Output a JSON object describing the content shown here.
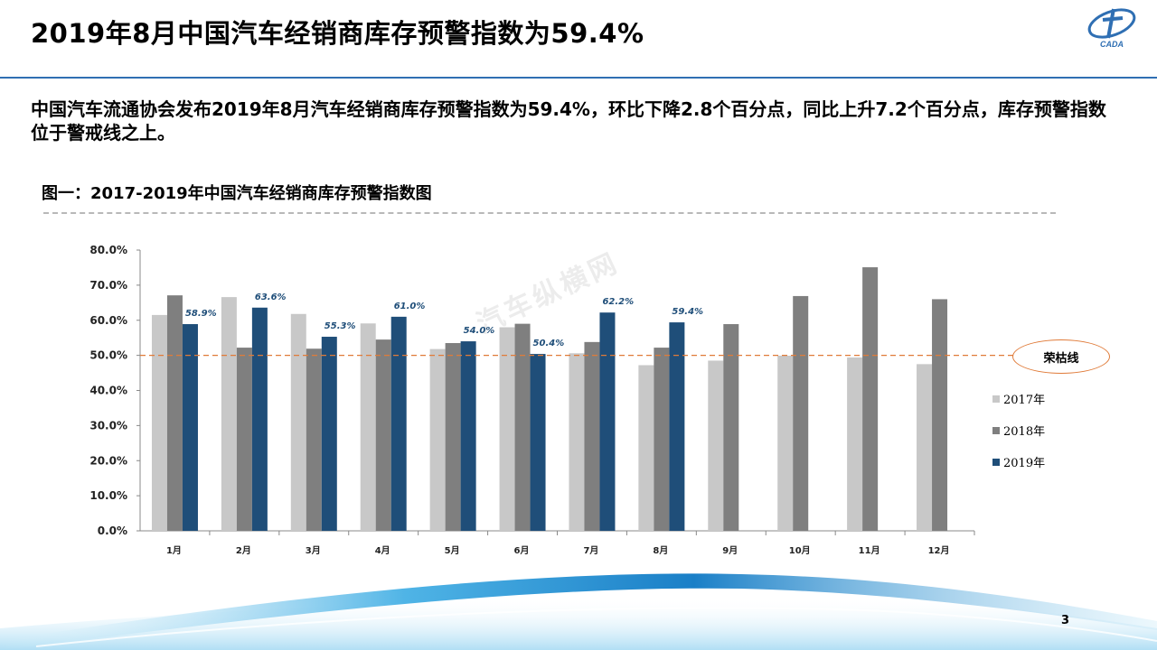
{
  "header": {
    "title": "2019年8月中国汽车经销商库存预警指数为59.4%"
  },
  "intro": {
    "text": "中国汽车流通协会发布2019年8月汽车经销商库存预警指数为59.4%，环比下降2.8个百分点，同比上升7.2个百分点，库存预警指数位于警戒线之上。"
  },
  "figure": {
    "title": "图一：2017-2019年中国汽车经销商库存预警指数图"
  },
  "watermark": {
    "text": "汽车纵横网"
  },
  "reference": {
    "label": "荣枯线",
    "value": 50,
    "color": "#e07b39"
  },
  "page": {
    "number": "3"
  },
  "colors": {
    "s2017": "#c8c8c8",
    "s2018": "#7f7f7f",
    "s2019": "#1f4e79",
    "accent": "#2f6fb3"
  },
  "chart_data": {
    "type": "bar",
    "categories": [
      "1月",
      "2月",
      "3月",
      "4月",
      "5月",
      "6月",
      "7月",
      "8月",
      "9月",
      "10月",
      "11月",
      "12月"
    ],
    "series": [
      {
        "name": "2017年",
        "values": [
          61.5,
          66.6,
          61.8,
          59.1,
          51.8,
          58.0,
          50.6,
          47.2,
          48.5,
          49.9,
          49.4,
          47.5
        ]
      },
      {
        "name": "2018年",
        "values": [
          67.1,
          52.2,
          51.9,
          54.5,
          53.5,
          59.0,
          53.8,
          52.2,
          58.9,
          66.9,
          75.1,
          66.0
        ]
      },
      {
        "name": "2019年",
        "values": [
          58.9,
          63.6,
          55.3,
          61.0,
          54.0,
          50.4,
          62.2,
          59.4,
          null,
          null,
          null,
          null
        ]
      }
    ],
    "data_labels": [
      "58.9%",
      "63.6%",
      "55.3%",
      "61.0%",
      "54.0%",
      "50.4%",
      "62.2%",
      "59.4%"
    ],
    "yticks": [
      "0.0%",
      "10.0%",
      "20.0%",
      "30.0%",
      "40.0%",
      "50.0%",
      "60.0%",
      "70.0%",
      "80.0%"
    ],
    "ylim": [
      0,
      80
    ],
    "legend_position": "right"
  }
}
